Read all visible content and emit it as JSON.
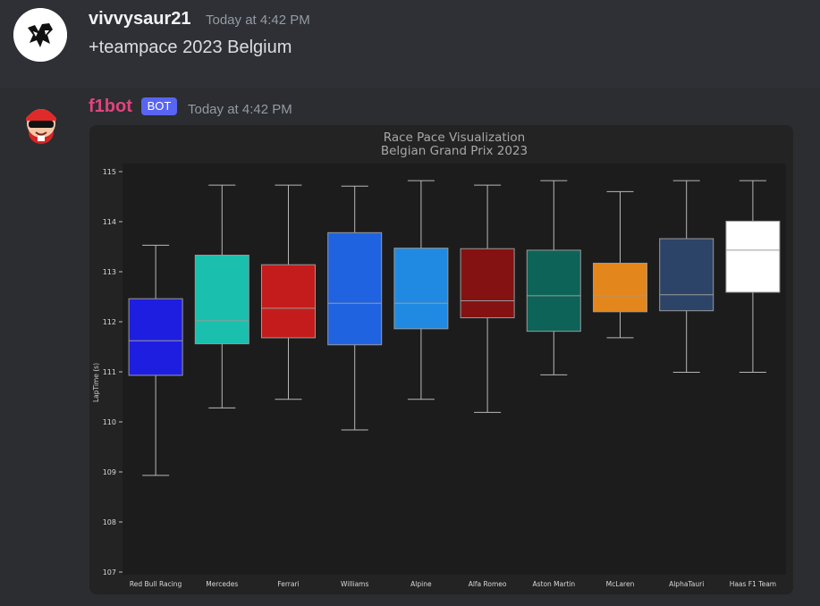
{
  "messages": [
    {
      "author": "vivvysaur21",
      "timestamp": "Today at 4:42 PM",
      "content": "+teampace 2023 Belgium"
    },
    {
      "author": "f1bot",
      "badge": "BOT",
      "timestamp": "Today at 4:42 PM"
    }
  ],
  "colors": {
    "username_bot": "#e0457b",
    "badge_bg": "#5865f2"
  },
  "chart_data": {
    "type": "box",
    "title": "Race Pace Visualization",
    "subtitle": "Belgian Grand Prix 2023",
    "ylabel": "LapTime (s)",
    "xlabel": "",
    "ylim": [
      107,
      115.2
    ],
    "yticks": [
      107,
      108,
      109,
      110,
      111,
      112,
      113,
      114,
      115
    ],
    "grid": false,
    "categories": [
      "Red Bull Racing",
      "Mercedes",
      "Ferrari",
      "Williams",
      "Alpine",
      "Alfa Romeo",
      "Aston Martin",
      "McLaren",
      "AlphaTauri",
      "Haas F1 Team"
    ],
    "series": [
      {
        "team": "Red Bull Racing",
        "color": "#1e1ee0",
        "min": 108.93,
        "q1": 110.93,
        "median": 111.62,
        "q3": 112.46,
        "max": 113.53
      },
      {
        "team": "Mercedes",
        "color": "#1abfad",
        "min": 110.28,
        "q1": 111.56,
        "median": 112.02,
        "q3": 113.33,
        "max": 114.73
      },
      {
        "team": "Ferrari",
        "color": "#c41c1c",
        "min": 110.45,
        "q1": 111.68,
        "median": 112.27,
        "q3": 113.14,
        "max": 114.73
      },
      {
        "team": "Williams",
        "color": "#1f63e0",
        "min": 109.84,
        "q1": 111.54,
        "median": 112.37,
        "q3": 113.78,
        "max": 114.71
      },
      {
        "team": "Alpine",
        "color": "#208ae2",
        "min": 110.45,
        "q1": 111.86,
        "median": 112.37,
        "q3": 113.47,
        "max": 114.82
      },
      {
        "team": "Alfa Romeo",
        "color": "#841212",
        "min": 110.19,
        "q1": 112.08,
        "median": 112.42,
        "q3": 113.46,
        "max": 114.73
      },
      {
        "team": "Aston Martin",
        "color": "#0e6358",
        "min": 110.94,
        "q1": 111.81,
        "median": 112.52,
        "q3": 113.43,
        "max": 114.82
      },
      {
        "team": "McLaren",
        "color": "#e3871c",
        "min": 111.68,
        "q1": 112.2,
        "median": 112.52,
        "q3": 113.17,
        "max": 114.6
      },
      {
        "team": "AlphaTauri",
        "color": "#2c4467",
        "min": 110.99,
        "q1": 112.22,
        "median": 112.54,
        "q3": 113.66,
        "max": 114.82
      },
      {
        "team": "Haas F1 Team",
        "color": "#ffffff",
        "min": 110.99,
        "q1": 112.59,
        "median": 113.43,
        "q3": 114.01,
        "max": 114.82
      }
    ]
  }
}
